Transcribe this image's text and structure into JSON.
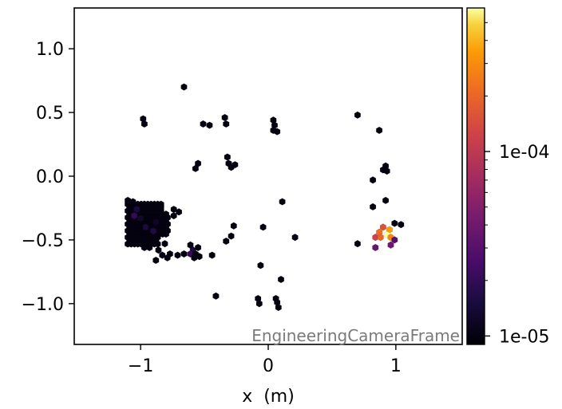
{
  "chart_data": {
    "type": "hexbin",
    "xlabel": "x  (m)",
    "ylabel": "",
    "title": "",
    "xlim": [
      -1.52,
      1.52
    ],
    "ylim": [
      -1.32,
      1.32
    ],
    "x_ticks": [
      -1,
      0,
      1
    ],
    "x_tick_labels": [
      "−1",
      "0",
      "1"
    ],
    "y_ticks": [
      1.0,
      0.5,
      0.0,
      -0.5,
      -1.0
    ],
    "y_tick_labels": [
      "1.0",
      "0.5",
      "0.0",
      "−0.5",
      "−1.0"
    ],
    "frame_label": "EngineeringCameraFrame",
    "colorbar": {
      "scale": "log",
      "colormap": "inferno",
      "range": [
        9e-06,
        0.0006
      ],
      "ticks": [
        1e-05,
        0.0001
      ],
      "tick_labels": [
        "1e-05",
        "1e-04"
      ]
    },
    "bins": [
      {
        "x": -0.66,
        "y": 0.7,
        "v": 1e-05
      },
      {
        "x": -0.98,
        "y": 0.45,
        "v": 1e-05
      },
      {
        "x": -0.97,
        "y": 0.41,
        "v": 1e-05
      },
      {
        "x": -0.51,
        "y": 0.41,
        "v": 1e-05
      },
      {
        "x": -0.46,
        "y": 0.4,
        "v": 1e-05
      },
      {
        "x": -0.34,
        "y": 0.46,
        "v": 1e-05
      },
      {
        "x": -0.33,
        "y": 0.41,
        "v": 1e-05
      },
      {
        "x": 0.04,
        "y": 0.44,
        "v": 1e-05
      },
      {
        "x": 0.05,
        "y": 0.4,
        "v": 1e-05
      },
      {
        "x": 0.04,
        "y": 0.36,
        "v": 1e-05
      },
      {
        "x": 0.07,
        "y": 0.35,
        "v": 1e-05
      },
      {
        "x": 0.7,
        "y": 0.48,
        "v": 1e-05
      },
      {
        "x": 0.87,
        "y": 0.36,
        "v": 1e-05
      },
      {
        "x": -0.55,
        "y": 0.1,
        "v": 1e-05
      },
      {
        "x": -0.57,
        "y": 0.06,
        "v": 1e-05
      },
      {
        "x": -0.32,
        "y": 0.15,
        "v": 1e-05
      },
      {
        "x": -0.31,
        "y": 0.1,
        "v": 1e-05
      },
      {
        "x": -0.29,
        "y": 0.07,
        "v": 1e-05
      },
      {
        "x": -0.26,
        "y": 0.09,
        "v": 1e-05
      },
      {
        "x": 0.92,
        "y": 0.08,
        "v": 1e-05
      },
      {
        "x": 0.9,
        "y": 0.05,
        "v": 1e-05
      },
      {
        "x": 0.93,
        "y": 0.04,
        "v": 1e-05
      },
      {
        "x": 0.82,
        "y": -0.03,
        "v": 1e-05
      },
      {
        "x": 0.92,
        "y": -0.19,
        "v": 1e-05
      },
      {
        "x": 0.82,
        "y": -0.24,
        "v": 1e-05
      },
      {
        "x": 0.11,
        "y": -0.2,
        "v": 1e-05
      },
      {
        "x": -0.27,
        "y": -0.39,
        "v": 1e-05
      },
      {
        "x": -0.29,
        "y": -0.47,
        "v": 1e-05
      },
      {
        "x": 0.21,
        "y": -0.48,
        "v": 1e-05
      },
      {
        "x": -0.33,
        "y": -0.51,
        "v": 1e-05
      },
      {
        "x": 0.7,
        "y": -0.53,
        "v": 1e-05
      },
      {
        "x": -0.44,
        "y": -0.62,
        "v": 1e-05
      },
      {
        "x": -0.06,
        "y": -0.7,
        "v": 1e-05
      },
      {
        "x": 0.1,
        "y": -0.81,
        "v": 1e-05
      },
      {
        "x": -0.41,
        "y": -0.94,
        "v": 1e-05
      },
      {
        "x": -0.08,
        "y": -0.96,
        "v": 1e-05
      },
      {
        "x": -0.07,
        "y": -1.0,
        "v": 1e-05
      },
      {
        "x": 0.06,
        "y": -0.96,
        "v": 1e-05
      },
      {
        "x": 0.07,
        "y": -0.99,
        "v": 1e-05
      },
      {
        "x": 0.08,
        "y": -1.03,
        "v": 1e-05
      },
      {
        "x": 1.04,
        "y": -0.38,
        "v": 1e-05
      },
      {
        "x": 0.99,
        "y": -0.37,
        "v": 1e-05
      },
      {
        "x": 0.9,
        "y": -0.4,
        "v": 0.00015
      },
      {
        "x": 0.95,
        "y": -0.42,
        "v": 0.00035
      },
      {
        "x": 0.87,
        "y": -0.44,
        "v": 0.00022
      },
      {
        "x": 0.84,
        "y": -0.48,
        "v": 0.00012
      },
      {
        "x": 0.88,
        "y": -0.48,
        "v": 0.0002
      },
      {
        "x": 0.93,
        "y": -0.46,
        "v": 0.0006
      },
      {
        "x": 0.96,
        "y": -0.48,
        "v": 0.00028
      },
      {
        "x": 0.99,
        "y": -0.5,
        "v": 3e-05
      },
      {
        "x": 0.96,
        "y": -0.54,
        "v": 4e-05
      },
      {
        "x": 0.84,
        "y": -0.56,
        "v": 3.5e-05
      },
      {
        "x": -0.74,
        "y": -0.26,
        "v": 1e-05
      },
      {
        "x": -0.7,
        "y": -0.28,
        "v": 1e-05
      },
      {
        "x": -0.74,
        "y": -0.31,
        "v": 1e-05
      },
      {
        "x": -0.61,
        "y": -0.54,
        "v": 1e-05
      },
      {
        "x": -0.59,
        "y": -0.58,
        "v": 1.5e-05
      },
      {
        "x": -0.55,
        "y": -0.56,
        "v": 1e-05
      },
      {
        "x": -0.61,
        "y": -0.61,
        "v": 2e-05
      },
      {
        "x": -0.57,
        "y": -0.61,
        "v": 1e-05
      },
      {
        "x": -0.54,
        "y": -0.63,
        "v": 1e-05
      },
      {
        "x": -0.58,
        "y": -0.64,
        "v": 1e-05
      },
      {
        "x": -0.66,
        "y": -0.61,
        "v": 1e-05
      },
      {
        "x": -0.71,
        "y": -0.62,
        "v": 1e-05
      },
      {
        "x": -0.77,
        "y": -0.61,
        "v": 1e-05
      },
      {
        "x": -0.79,
        "y": -0.64,
        "v": 1e-05
      },
      {
        "x": -0.83,
        "y": -0.62,
        "v": 1e-05
      },
      {
        "x": -0.86,
        "y": -0.58,
        "v": 1e-05
      },
      {
        "x": -0.88,
        "y": -0.66,
        "v": 1e-05
      },
      {
        "x": -0.93,
        "y": -0.56,
        "v": 1e-05
      },
      {
        "x": -0.97,
        "y": -0.56,
        "v": 1e-05
      },
      {
        "x": -0.81,
        "y": -0.53,
        "v": 1e-05
      },
      {
        "x": -1.1,
        "y": -0.19,
        "v": 1e-05
      },
      {
        "x": -1.06,
        "y": -0.2,
        "v": 1e-05
      },
      {
        "x": -0.97,
        "y": -0.22,
        "v": 1e-05
      },
      {
        "x": -0.88,
        "y": -0.23,
        "v": 1e-05
      },
      {
        "x": -0.84,
        "y": -0.24,
        "v": 1e-05
      },
      {
        "x": -0.04,
        "y": -0.4,
        "v": 1e-05
      }
    ],
    "cluster": {
      "x_range": [
        -1.1,
        -0.78
      ],
      "y_range": [
        -0.55,
        -0.22
      ],
      "v": 1e-05,
      "highlight": [
        {
          "x": -1.03,
          "y": -0.26,
          "v": 1.5e-05
        },
        {
          "x": -1.05,
          "y": -0.31,
          "v": 2e-05
        },
        {
          "x": -1.0,
          "y": -0.33,
          "v": 1.3e-05
        },
        {
          "x": -0.96,
          "y": -0.4,
          "v": 1.5e-05
        },
        {
          "x": -0.88,
          "y": -0.36,
          "v": 1.2e-05
        },
        {
          "x": -0.9,
          "y": -0.43,
          "v": 1.6e-05
        }
      ]
    }
  }
}
